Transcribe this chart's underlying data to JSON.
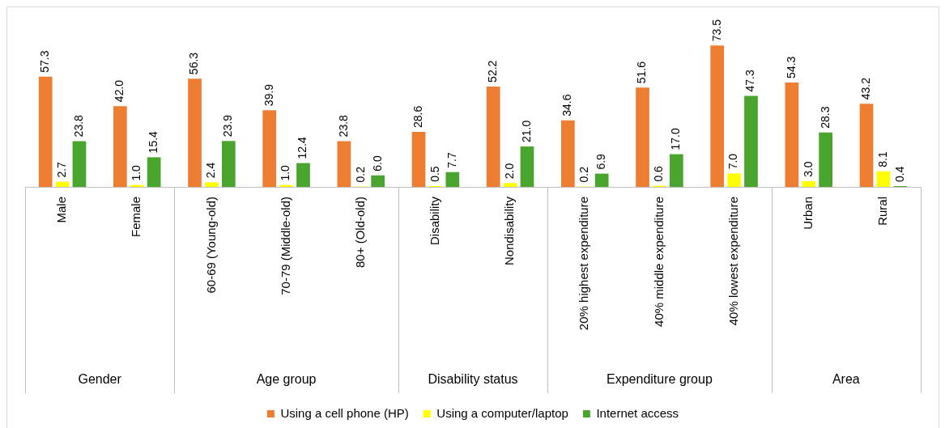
{
  "chart_data": {
    "type": "bar",
    "categories": [
      "Male",
      "Female",
      "60-69 (Young-old)",
      "70-79 (Middle-old)",
      "80+ (Old-old)",
      "Disability",
      "Nondisability",
      "20% highest expenditure",
      "40% middle expenditure",
      "40% lowest expenditure",
      "Urban",
      "Rural"
    ],
    "series": [
      {
        "name": "Using a cell phone (HP)",
        "color": "#ed7d31",
        "values": [
          57.3,
          42.0,
          56.3,
          39.9,
          23.8,
          28.6,
          52.2,
          34.6,
          51.6,
          73.5,
          54.3,
          43.2
        ],
        "value_labels": [
          "57.3",
          "42.0",
          "56.3",
          "39.9",
          "23.8",
          "28.6",
          "52.2",
          "34.6",
          "51.6",
          "73.5",
          "54.3",
          "43.2"
        ]
      },
      {
        "name": "Using a computer/laptop",
        "color": "#ffff00",
        "values": [
          2.7,
          1.0,
          2.4,
          1.0,
          0.2,
          0.5,
          2.0,
          0.2,
          0.6,
          7.0,
          3.0,
          8.1
        ],
        "value_labels": [
          "2.7",
          "1.0",
          "2.4",
          "1.0",
          "0.2",
          "0.5",
          "2.0",
          "0.2",
          "0.6",
          "7.0",
          "3.0",
          "8.1"
        ]
      },
      {
        "name": "Internet access",
        "color": "#4aa52e",
        "values": [
          23.8,
          15.4,
          23.9,
          12.4,
          6.0,
          7.7,
          21.0,
          6.9,
          17.0,
          47.3,
          28.3,
          0.4
        ],
        "value_labels": [
          "23.8",
          "15.4",
          "23.9",
          "12.4",
          "6.0",
          "7.7",
          "21.0",
          "6.9",
          "17.0",
          "47.3",
          "28.3",
          "0.4"
        ]
      }
    ],
    "annotations": [
      "Gender",
      "Age group",
      "Disability status",
      "Expenditure group",
      "Area"
    ],
    "legend": "bottom",
    "tick_labels": "x"
  }
}
